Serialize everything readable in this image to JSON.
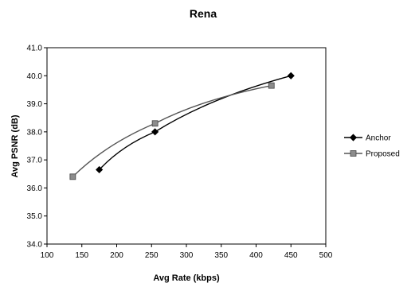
{
  "chart_data": {
    "type": "line",
    "title": "Rena",
    "xlabel": "Avg Rate (kbps)",
    "ylabel": "Avg PSNR (dB)",
    "xlim": [
      100,
      500
    ],
    "ylim": [
      34.0,
      41.0
    ],
    "xticks": [
      "100",
      "150",
      "200",
      "250",
      "300",
      "350",
      "400",
      "450",
      "500"
    ],
    "yticks": [
      "34.0",
      "35.0",
      "36.0",
      "37.0",
      "38.0",
      "39.0",
      "40.0",
      "41.0"
    ],
    "grid": false,
    "legend_position": "right",
    "series": [
      {
        "name": "Anchor",
        "marker": "diamond",
        "line_style": "solid",
        "color": "#000000",
        "x": [
          175,
          255,
          450
        ],
        "y": [
          36.65,
          38.0,
          40.0
        ]
      },
      {
        "name": "Proposed",
        "marker": "square",
        "line_style": "solid",
        "color": "#555555",
        "marker_color": "#8c8c8c",
        "x": [
          137,
          255,
          422
        ],
        "y": [
          36.4,
          38.3,
          39.65
        ]
      }
    ]
  }
}
